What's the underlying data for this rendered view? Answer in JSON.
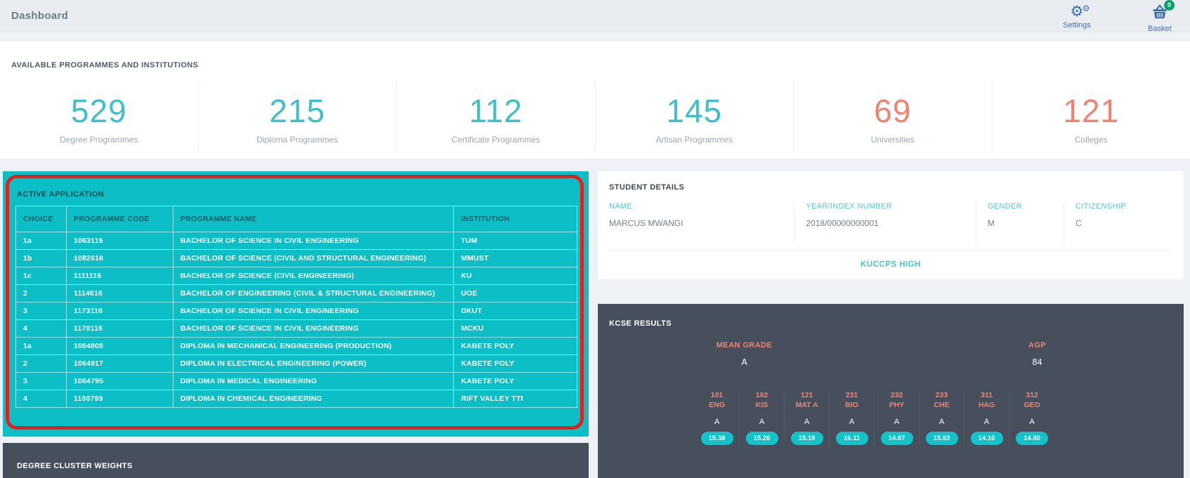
{
  "topbar": {
    "title": "Dashboard",
    "settings_label": "Settings",
    "basket_label": "Basket",
    "basket_badge": "0"
  },
  "stats": {
    "heading": "AVAILABLE PROGRAMMES AND INSTITUTIONS",
    "items": [
      {
        "value": "529",
        "label": "Degree Programmes",
        "color": "#3fc0c9"
      },
      {
        "value": "215",
        "label": "Diploma Programmes",
        "color": "#3fc0c9"
      },
      {
        "value": "112",
        "label": "Certificate Programmes",
        "color": "#3fc0c9"
      },
      {
        "value": "145",
        "label": "Artisan Programmes",
        "color": "#3fc0c9"
      },
      {
        "value": "69",
        "label": "Universities",
        "color": "#f0836f"
      },
      {
        "value": "121",
        "label": "Colleges",
        "color": "#f0836f"
      }
    ]
  },
  "active_application": {
    "heading": "ACTIVE APPLICATION",
    "columns": [
      "CHOICE",
      "PROGRAMME CODE",
      "PROGRAMME NAME",
      "INSTITUTION"
    ],
    "col_widths": [
      "9%",
      "19%",
      "50%",
      "22%"
    ],
    "rows": [
      [
        "1a",
        "1063116",
        "BACHELOR OF SCIENCE IN CIVIL ENGINEERING",
        "TUM"
      ],
      [
        "1b",
        "1082616",
        "BACHELOR OF SCIENCE (CIVIL AND STRUCTURAL ENGINEERING)",
        "MMUST"
      ],
      [
        "1c",
        "1111116",
        "BACHELOR OF SCIENCE (CIVIL ENGINEERING)",
        "KU"
      ],
      [
        "2",
        "1114616",
        "BACHELOR OF ENGINEERING (CIVIL & STRUCTURAL ENGINEERING)",
        "UOE"
      ],
      [
        "3",
        "1173116",
        "BACHELOR OF SCIENCE IN CIVIL ENGINEERING",
        "DKUT"
      ],
      [
        "4",
        "1170116",
        "BACHELOR OF SCIENCE IN CIVIL ENGINEERING",
        "MCKU"
      ],
      [
        "1a",
        "1064808",
        "DIPLOMA IN MECHANICAL ENGINEERING (PRODUCTION)",
        "KABETE POLY"
      ],
      [
        "2",
        "1064917",
        "DIPLOMA IN ELECTRICAL ENGINEERING (POWER)",
        "KABETE POLY"
      ],
      [
        "3",
        "1064795",
        "DIPLOMA IN MEDICAL ENGINEERING",
        "KABETE POLY"
      ],
      [
        "4",
        "1100799",
        "DIPLOMA IN CHEMICAL ENGINEERING",
        "RIFT VALLEY TTI"
      ]
    ]
  },
  "student_details": {
    "heading": "STUDENT DETAILS",
    "fields": [
      {
        "label": "NAME",
        "value": "MARCUS MWANGI"
      },
      {
        "label": "YEAR/INDEX NUMBER",
        "value": "2018/00000000001"
      },
      {
        "label": "GENDER",
        "value": "M"
      },
      {
        "label": "CITIZENSHIP",
        "value": "C"
      }
    ],
    "school": "KUCCPS HIGH"
  },
  "kcse": {
    "heading": "KCSE RESULTS",
    "mean_grade_label": "MEAN GRADE",
    "mean_grade": "A",
    "agp_label": "AGP",
    "agp": "84",
    "subjects": [
      {
        "code": "101",
        "abbr": "ENG",
        "grade": "A",
        "points": "15.38"
      },
      {
        "code": "102",
        "abbr": "KIS",
        "grade": "A",
        "points": "15.26"
      },
      {
        "code": "121",
        "abbr": "MAT A",
        "grade": "A",
        "points": "15.19"
      },
      {
        "code": "231",
        "abbr": "BIO",
        "grade": "A",
        "points": "16.11"
      },
      {
        "code": "232",
        "abbr": "PHY",
        "grade": "A",
        "points": "14.87"
      },
      {
        "code": "233",
        "abbr": "CHE",
        "grade": "A",
        "points": "15.83"
      },
      {
        "code": "311",
        "abbr": "HAG",
        "grade": "A",
        "points": "14.10"
      },
      {
        "code": "312",
        "abbr": "GEO",
        "grade": "A",
        "points": "14.80"
      }
    ]
  },
  "cluster": {
    "heading": "DEGREE CLUSTER WEIGHTS"
  },
  "colors": {
    "teal_panel": "#0cbfc7",
    "highlight_red": "#e2211c",
    "dark_panel": "#474e5c",
    "coral": "#ee8673",
    "accent_teal": "#4cc3cb",
    "icon_blue": "#3a6db0",
    "badge_green": "#0aa06e"
  }
}
